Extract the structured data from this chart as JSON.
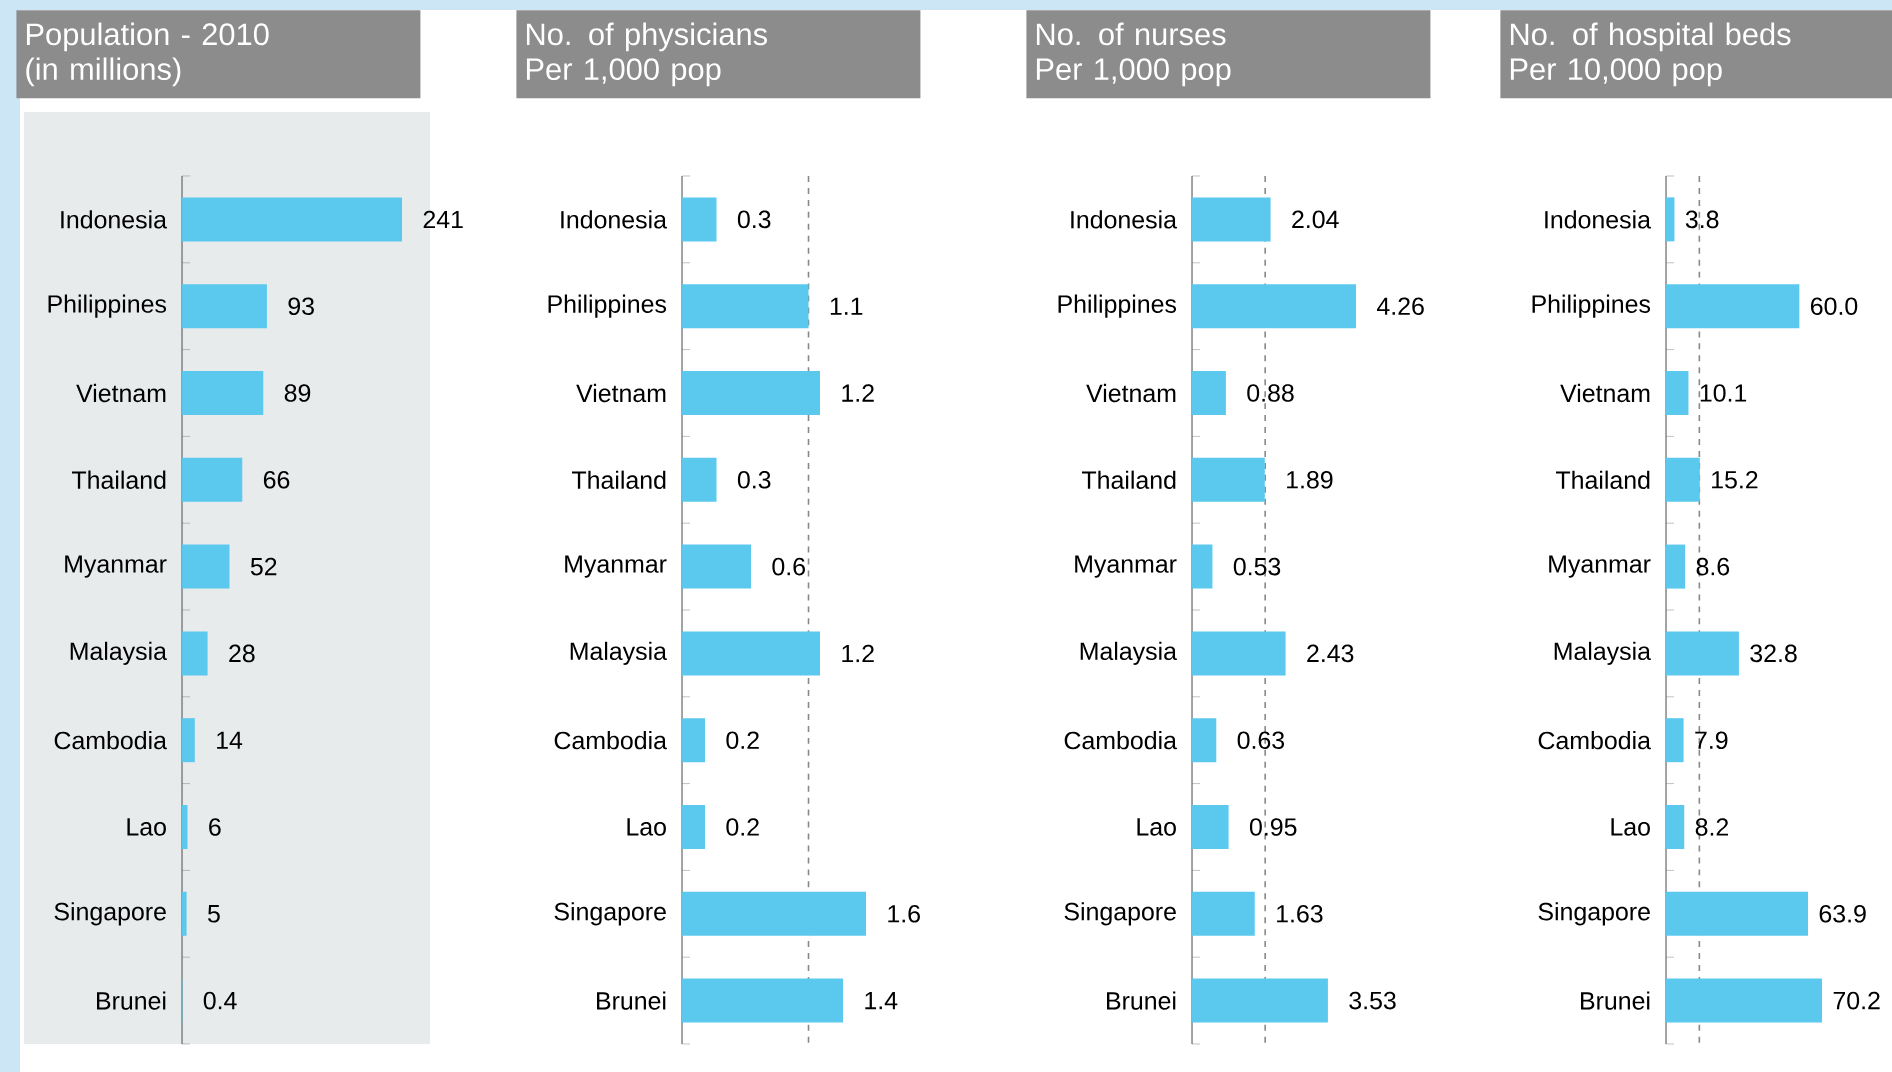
{
  "chart_data": [
    {
      "type": "bar",
      "orientation": "horizontal",
      "title": "Population - 2010",
      "subtitle": "(in millions)",
      "categories": [
        "Indonesia",
        "Philippines",
        "Vietnam",
        "Thailand",
        "Myanmar",
        "Malaysia",
        "Cambodia",
        "Lao",
        "Singapore",
        "Brunei"
      ],
      "values": [
        241,
        93,
        89,
        66,
        52,
        28,
        14,
        6,
        5,
        0.4
      ],
      "color": "#5bc8ee",
      "data_labels": true
    },
    {
      "type": "bar",
      "orientation": "horizontal",
      "title": "No. of physicians",
      "subtitle": "Per 1,000 pop",
      "categories": [
        "Indonesia",
        "Philippines",
        "Vietnam",
        "Thailand",
        "Myanmar",
        "Malaysia",
        "Cambodia",
        "Lao",
        "Singapore",
        "Brunei"
      ],
      "values": [
        0.3,
        1.1,
        1.2,
        0.3,
        0.6,
        1.2,
        0.2,
        0.2,
        1.6,
        1.4
      ],
      "color": "#5bc8ee",
      "data_labels": true,
      "ref_lines": [
        {
          "axis": "x",
          "value": 1.1,
          "color": "#888888",
          "line_style": "dashed"
        }
      ]
    },
    {
      "type": "bar",
      "orientation": "horizontal",
      "title": "No. of nurses",
      "subtitle": "Per 1,000 pop",
      "categories": [
        "Indonesia",
        "Philippines",
        "Vietnam",
        "Thailand",
        "Myanmar",
        "Malaysia",
        "Cambodia",
        "Lao",
        "Singapore",
        "Brunei"
      ],
      "values": [
        2.04,
        4.26,
        0.88,
        1.89,
        0.53,
        2.43,
        0.63,
        0.95,
        1.63,
        3.53
      ],
      "color": "#5bc8ee",
      "data_labels": true,
      "ref_lines": [
        {
          "axis": "x",
          "value": 1.9,
          "color": "#888888",
          "line_style": "dashed"
        }
      ]
    },
    {
      "type": "bar",
      "orientation": "horizontal",
      "title": "No. of hospital beds",
      "subtitle": "Per 10,000 pop",
      "categories": [
        "Indonesia",
        "Philippines",
        "Vietnam",
        "Thailand",
        "Myanmar",
        "Malaysia",
        "Cambodia",
        "Lao",
        "Singapore",
        "Brunei"
      ],
      "values": [
        3.8,
        60.0,
        10.1,
        15.2,
        8.6,
        32.8,
        7.9,
        8.2,
        63.9,
        70.2
      ],
      "value_labels": [
        "3.8",
        "60.0",
        "10.1",
        "15.2",
        "8.6",
        "32.8",
        "7.9",
        "8.2",
        "63.9",
        "70.2"
      ],
      "color": "#5bc8ee",
      "ref_lines": [
        {
          "axis": "x",
          "value": 15,
          "color": "#888888",
          "line_style": "dashed"
        }
      ]
    }
  ]
}
